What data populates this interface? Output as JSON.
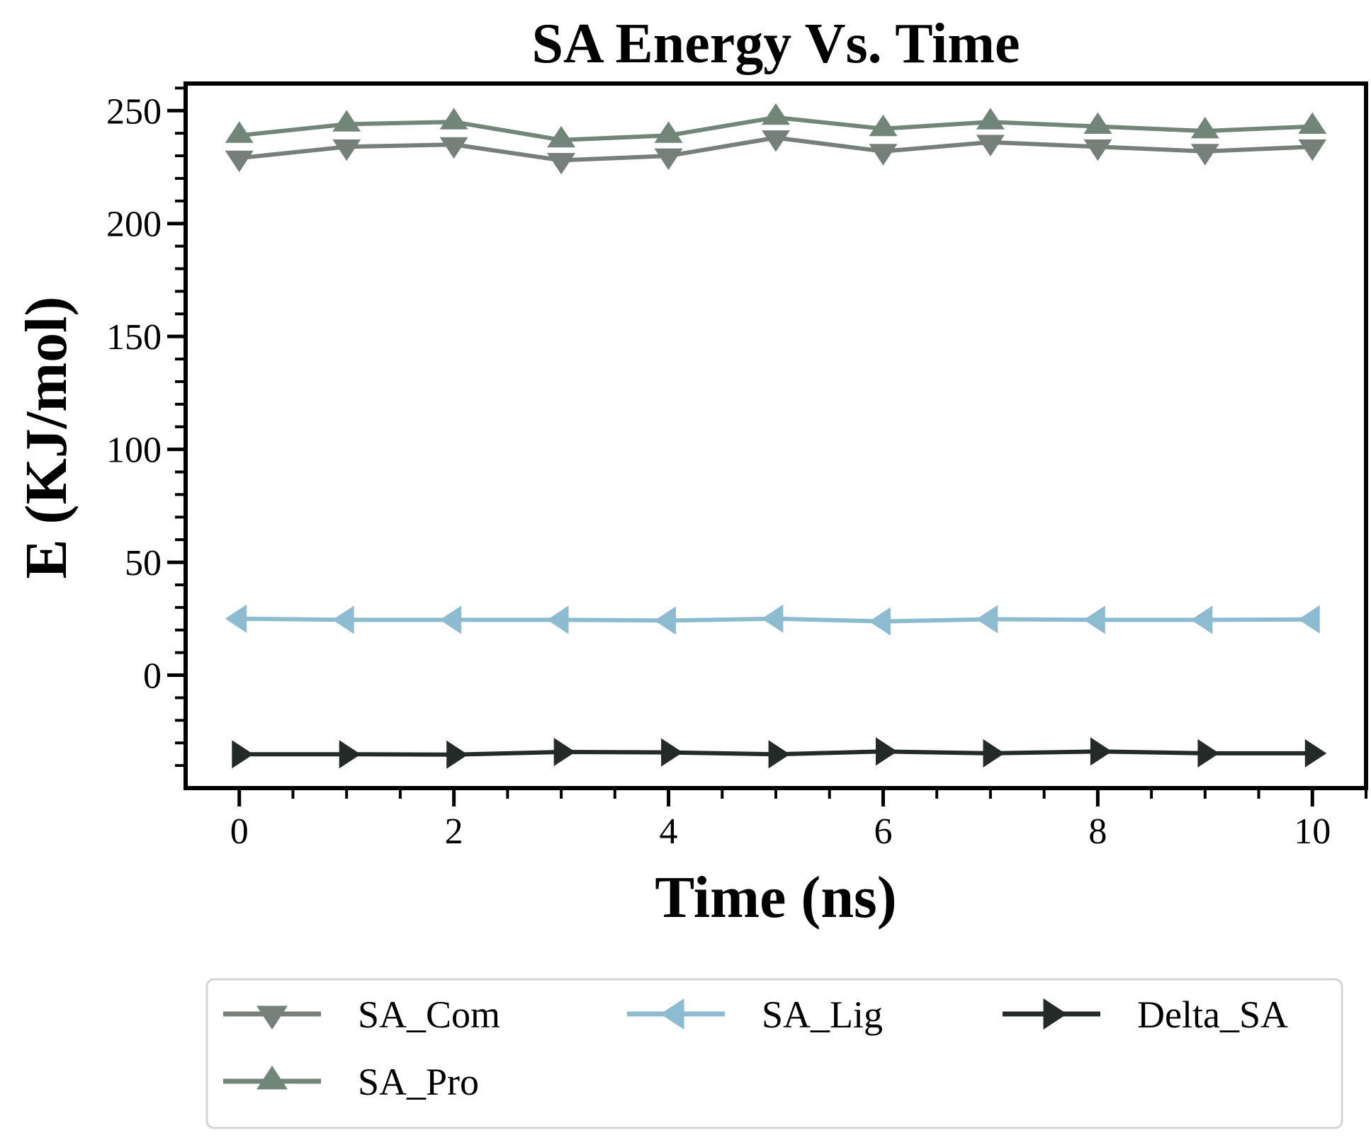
{
  "chart_data": {
    "type": "line",
    "title": "SA Energy Vs. Time",
    "xlabel": "Time (ns)",
    "ylabel": "E (KJ/mol)",
    "x": [
      0,
      1,
      2,
      3,
      4,
      5,
      6,
      7,
      8,
      9,
      10
    ],
    "xlim": [
      -0.5,
      10.5
    ],
    "ylim": [
      -50,
      262
    ],
    "xticks": [
      0,
      2,
      4,
      6,
      8,
      10
    ],
    "yticks": [
      0,
      50,
      100,
      150,
      200,
      250
    ],
    "grid": false,
    "legend_position": "bottom",
    "series": [
      {
        "name": "SA_Com",
        "marker": "triangle-down",
        "color": "#777f7a",
        "values": [
          229,
          234,
          235,
          228,
          230,
          238,
          232,
          236,
          234,
          232,
          234
        ]
      },
      {
        "name": "SA_Pro",
        "marker": "triangle-up",
        "color": "#718679",
        "values": [
          239,
          244,
          245,
          237,
          239,
          247,
          242,
          245,
          243,
          241,
          243
        ]
      },
      {
        "name": "SA_Lig",
        "marker": "triangle-left",
        "color": "#8dbbd0",
        "values": [
          25,
          24.5,
          24.5,
          24.5,
          24.2,
          25,
          23.8,
          24.8,
          24.5,
          24.5,
          24.7
        ]
      },
      {
        "name": "Delta_SA",
        "marker": "triangle-right",
        "color": "#232a28",
        "values": [
          -35,
          -35,
          -35.2,
          -34,
          -34.2,
          -35,
          -33.8,
          -34.6,
          -33.8,
          -34.6,
          -34.6
        ]
      }
    ]
  }
}
